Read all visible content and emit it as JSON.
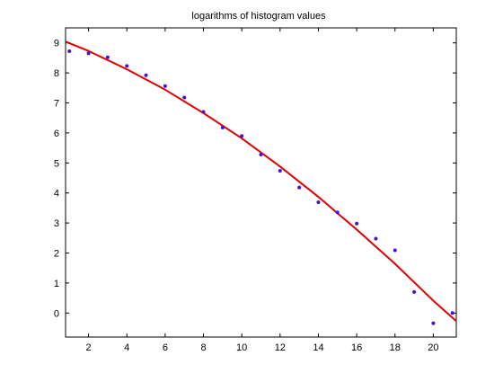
{
  "chart_data": {
    "type": "scatter",
    "title": "logarithms of histogram values",
    "xlabel": "",
    "ylabel": "",
    "xlim": [
      0.8,
      21.2
    ],
    "ylim": [
      -0.8,
      9.5
    ],
    "xticks": [
      2,
      4,
      6,
      8,
      10,
      12,
      14,
      16,
      18,
      20
    ],
    "yticks": [
      0,
      1,
      2,
      3,
      4,
      5,
      6,
      7,
      8,
      9
    ],
    "grid": false,
    "series": [
      {
        "kind": "points",
        "color": "#4b0fd0",
        "x": [
          1,
          2,
          3,
          4,
          5,
          6,
          7,
          8,
          9,
          10,
          11,
          12,
          13,
          14,
          15,
          16,
          17,
          18,
          19,
          20,
          21
        ],
        "y": [
          8.72,
          8.65,
          8.52,
          8.23,
          7.92,
          7.56,
          7.18,
          6.7,
          6.18,
          5.9,
          5.28,
          4.74,
          4.18,
          3.69,
          3.35,
          2.98,
          2.48,
          2.09,
          0.7,
          -0.34,
          0.0
        ]
      },
      {
        "kind": "fit",
        "color": "#e00000",
        "x": [
          0.8,
          2,
          4,
          6,
          8,
          10,
          12,
          14,
          16,
          18,
          20,
          21.2
        ],
        "y": [
          9.04,
          8.73,
          8.12,
          7.44,
          6.66,
          5.82,
          4.88,
          3.87,
          2.78,
          1.64,
          0.41,
          -0.27
        ]
      }
    ]
  }
}
